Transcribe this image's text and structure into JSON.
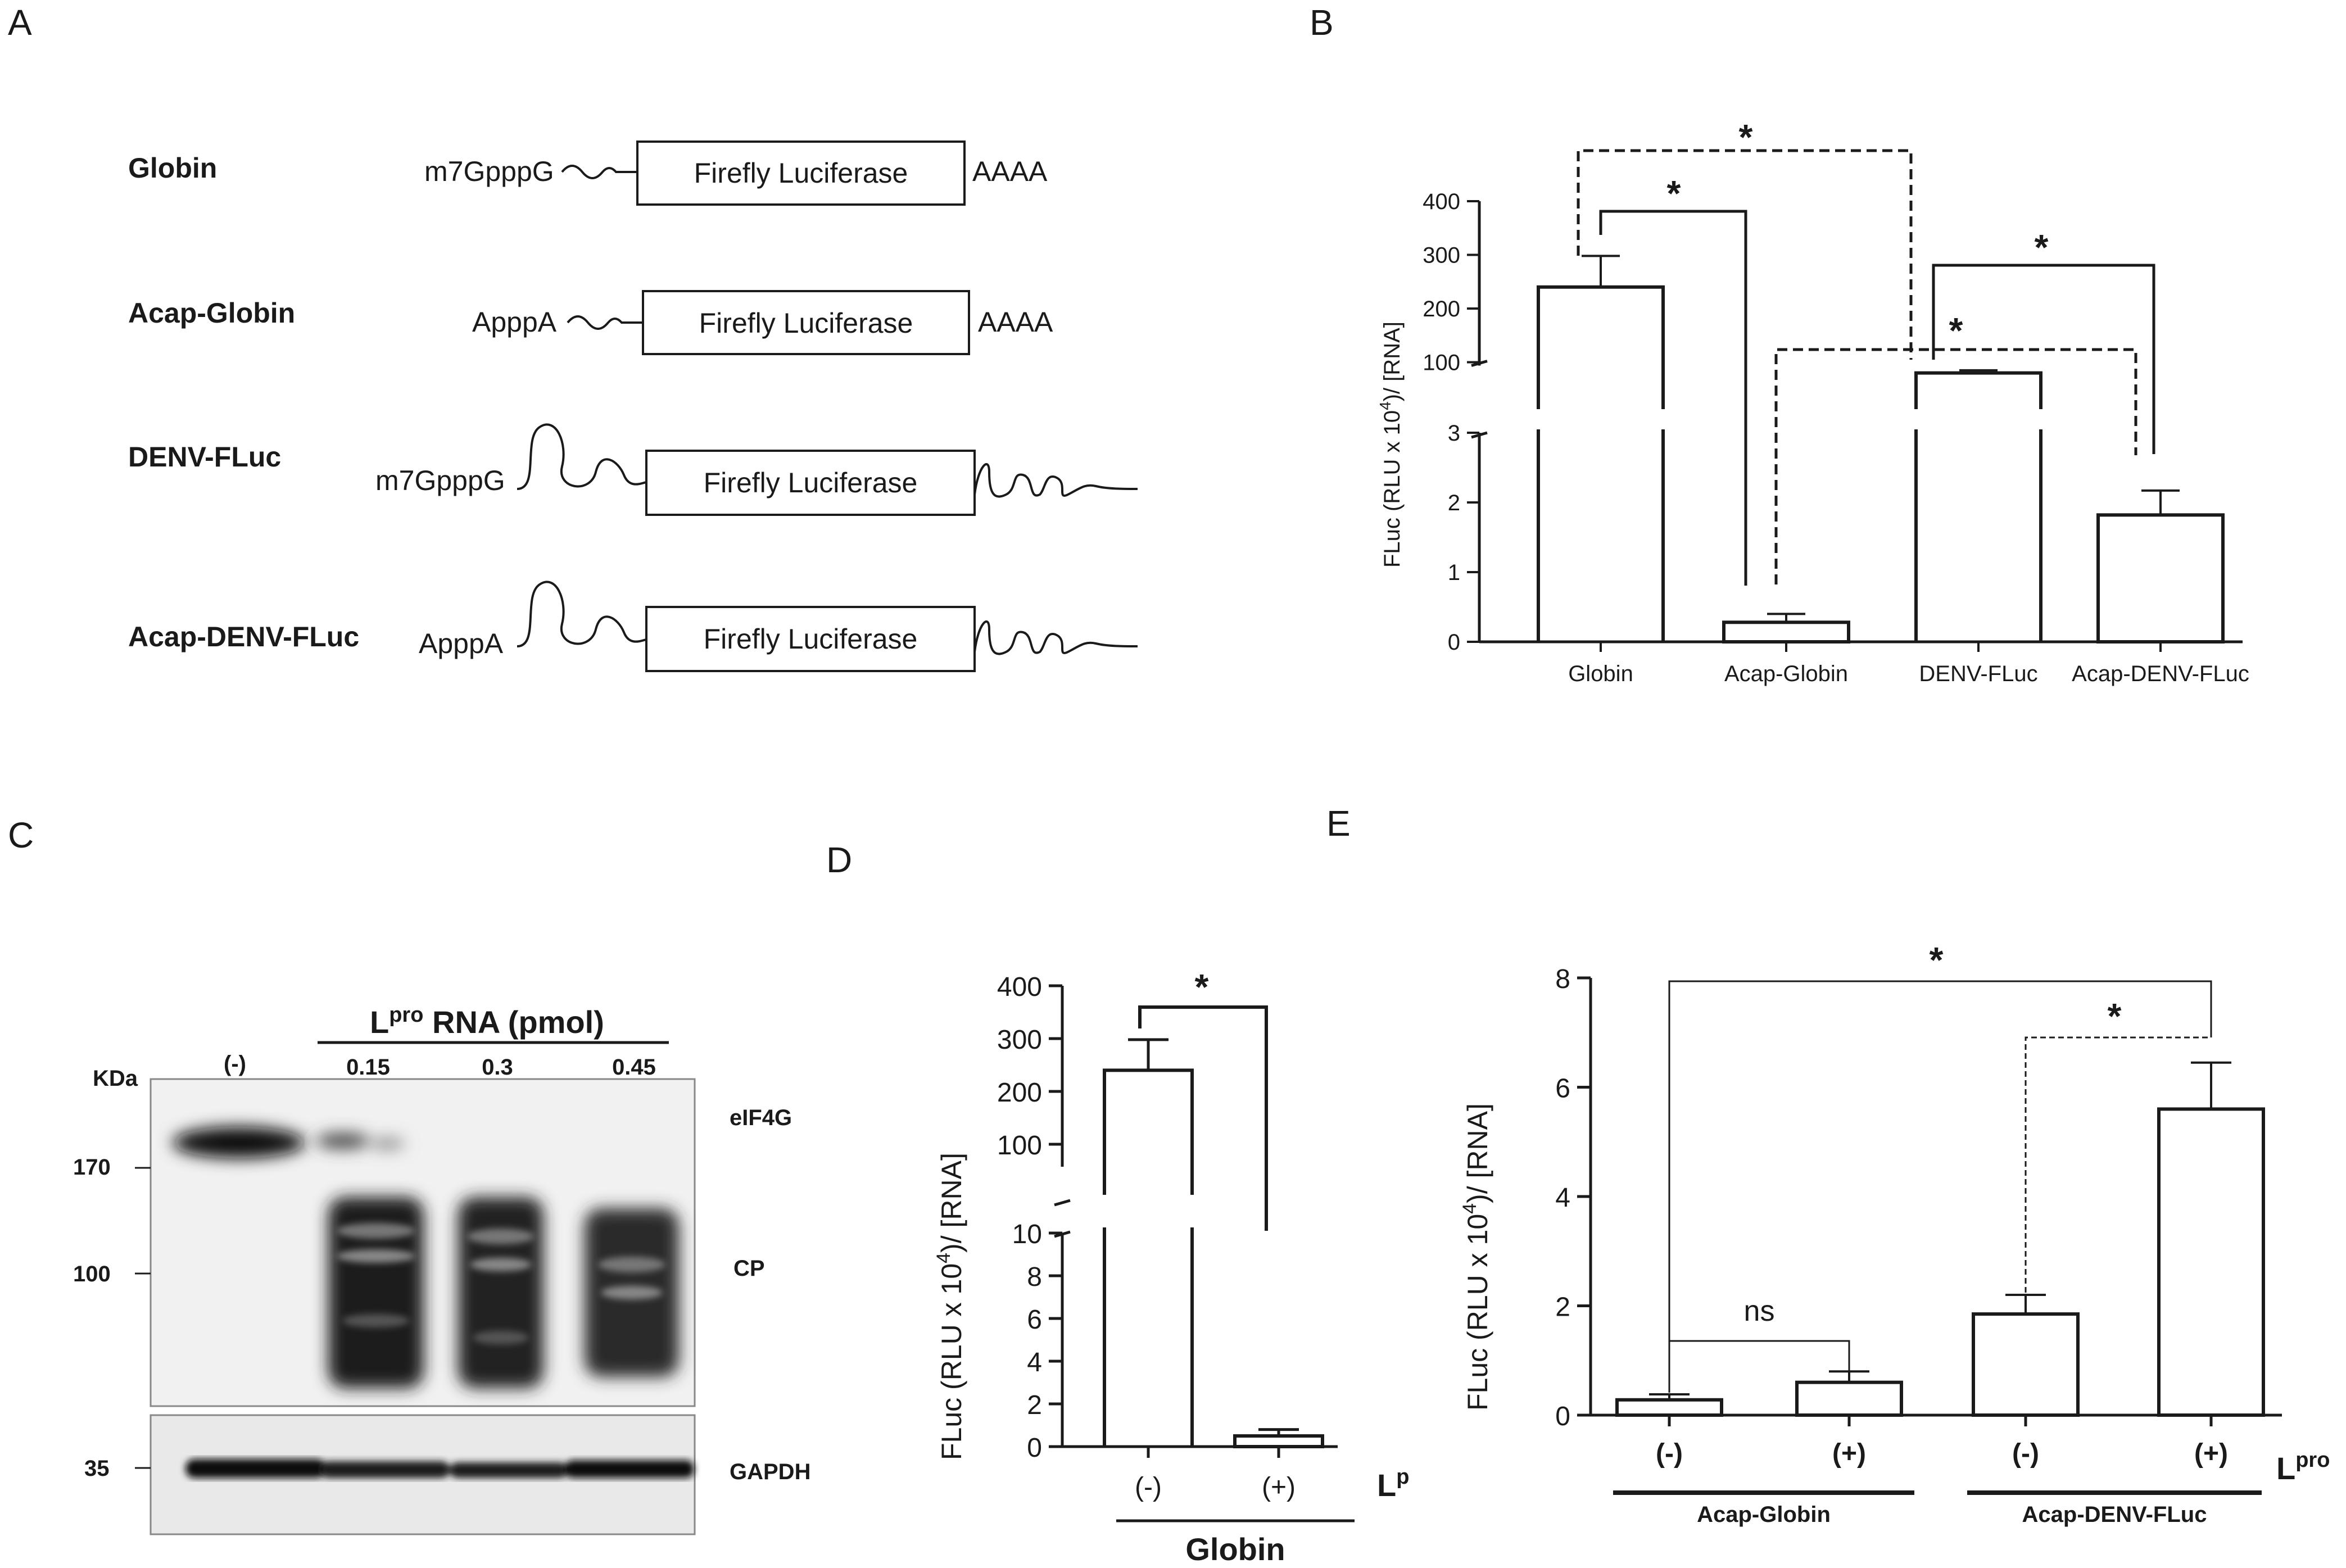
{
  "panels": {
    "a": {
      "letter": "A",
      "constructs": [
        {
          "label": "Globin",
          "cap": "m7GpppG",
          "box": "Firefly Luciferase",
          "tail": "AAAA"
        },
        {
          "label": "Acap-Globin",
          "cap": "ApppA",
          "box": "Firefly Luciferase",
          "tail": "AAAA"
        },
        {
          "label": "DENV-FLuc",
          "cap": "m7GpppG",
          "box": "Firefly Luciferase",
          "tail": ""
        },
        {
          "label": "Acap-DENV-FLuc",
          "cap": "ApppA",
          "box": "Firefly Luciferase",
          "tail": ""
        }
      ]
    },
    "b": {
      "letter": "B",
      "star": "*"
    },
    "c": {
      "letter": "C",
      "header": "L",
      "header_sup": "pro",
      "header_rest": " RNA (pmol)",
      "kda_label": "KDa",
      "lanes": [
        "(-)",
        "0.15",
        "0.3",
        "0.45"
      ],
      "markers": [
        "170",
        "100",
        "35"
      ],
      "band_labels": [
        "eIF4G",
        "CP",
        "GAPDH"
      ]
    },
    "d": {
      "letter": "D",
      "group_label": "Globin",
      "treatment_label": "L",
      "treatment_sup": "p",
      "star": "*"
    },
    "e": {
      "letter": "E",
      "group_labels": [
        "Acap-Globin",
        "Acap-DENV-FLuc"
      ],
      "treatment_label": "L",
      "treatment_sup": "pro",
      "ns_label": "ns",
      "star": "*"
    }
  },
  "chart_data": [
    {
      "panel": "B",
      "type": "bar",
      "categories": [
        "Globin",
        "Acap-Globin",
        "DENV-FLuc",
        "Acap-DENV-FLuc"
      ],
      "values": [
        240,
        0.28,
        80,
        1.82
      ],
      "errors": [
        58,
        0.12,
        5,
        0.35
      ],
      "ylabel_main": "FLuc (RLU x 10",
      "ylabel_sup": "4",
      "ylabel_tail": ")/ [RNA]",
      "axis_break": true,
      "lower_segment": {
        "ylim": [
          0,
          3
        ],
        "ticks": [
          "0",
          "1",
          "2",
          "3"
        ]
      },
      "upper_segment": {
        "ylim": [
          0,
          400
        ],
        "ticks": [
          "100",
          "200",
          "300",
          "400"
        ]
      },
      "significance": [
        "*",
        "*",
        "*",
        "*"
      ]
    },
    {
      "panel": "D",
      "type": "bar",
      "categories": [
        "(-)",
        "(+)"
      ],
      "values": [
        240,
        0.5
      ],
      "errors": [
        58,
        0.3
      ],
      "ylabel_main": "FLuc (RLU x 10",
      "ylabel_sup": "4",
      "ylabel_tail": ")/ [RNA]",
      "axis_break": true,
      "lower_segment": {
        "ylim": [
          0,
          10
        ],
        "ticks": [
          "0",
          "2",
          "4",
          "6",
          "8",
          "10"
        ]
      },
      "upper_segment": {
        "ylim": [
          0,
          400
        ],
        "ticks": [
          "100",
          "200",
          "300",
          "400"
        ]
      },
      "significance": [
        "*"
      ]
    },
    {
      "panel": "E",
      "type": "bar",
      "categories": [
        "(-)",
        "(+)",
        "(-)",
        "(+)"
      ],
      "values": [
        0.28,
        0.6,
        1.85,
        5.6
      ],
      "errors": [
        0.1,
        0.2,
        0.35,
        0.85
      ],
      "ylabel_main": "FLuc (RLU x 10",
      "ylabel_sup": "4",
      "ylabel_tail": ")/ [RNA]",
      "ylim": [
        0,
        8
      ],
      "ticks": [
        "0",
        "2",
        "4",
        "6",
        "8"
      ],
      "significance": [
        "ns",
        "*",
        "*"
      ]
    }
  ]
}
